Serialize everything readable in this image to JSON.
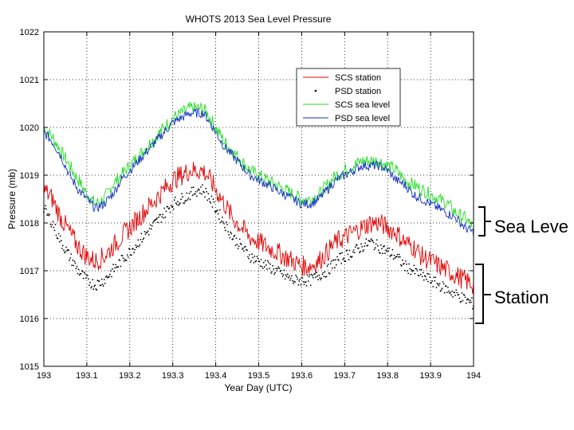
{
  "chart_data": {
    "type": "line",
    "title": "WHOTS 2013 Sea Level Pressure",
    "xlabel": "Year Day (UTC)",
    "ylabel": "Pressure (mb)",
    "xlim": [
      193,
      194
    ],
    "ylim": [
      1015,
      1022
    ],
    "xticks": [
      193,
      193.1,
      193.2,
      193.3,
      193.4,
      193.5,
      193.6,
      193.7,
      193.8,
      193.9,
      194
    ],
    "xtick_labels": [
      "193",
      "193.1",
      "193.2",
      "193.3",
      "193.4",
      "193.5",
      "193.6",
      "193.7",
      "193.8",
      "193.9",
      "194"
    ],
    "yticks": [
      1015,
      1016,
      1017,
      1018,
      1019,
      1020,
      1021,
      1022
    ],
    "ytick_labels": [
      "1015",
      "1016",
      "1017",
      "1018",
      "1019",
      "1020",
      "1021",
      "1022"
    ],
    "grid": true,
    "legend": {
      "position": "top-right",
      "entries": [
        "SCS station",
        "PSD station",
        "SCS sea level",
        "PSD sea level"
      ]
    },
    "series": [
      {
        "name": "SCS station",
        "color": "#e00000",
        "style": "line",
        "x": [
          193.0,
          193.02,
          193.04,
          193.06,
          193.08,
          193.1,
          193.12,
          193.14,
          193.16,
          193.18,
          193.2,
          193.22,
          193.24,
          193.26,
          193.28,
          193.3,
          193.32,
          193.34,
          193.36,
          193.37,
          193.38,
          193.4,
          193.42,
          193.44,
          193.46,
          193.48,
          193.5,
          193.52,
          193.54,
          193.56,
          193.58,
          193.6,
          193.62,
          193.64,
          193.66,
          193.68,
          193.7,
          193.72,
          193.74,
          193.76,
          193.78,
          193.8,
          193.82,
          193.84,
          193.86,
          193.88,
          193.9,
          193.92,
          193.94,
          193.96,
          193.98,
          194.0
        ],
        "values": [
          1018.7,
          1018.5,
          1018.1,
          1017.8,
          1017.5,
          1017.3,
          1017.2,
          1017.3,
          1017.5,
          1017.7,
          1017.9,
          1018.1,
          1018.3,
          1018.5,
          1018.7,
          1018.9,
          1019.0,
          1019.1,
          1019.1,
          1019.1,
          1019.0,
          1018.7,
          1018.4,
          1018.1,
          1017.9,
          1017.7,
          1017.6,
          1017.5,
          1017.4,
          1017.3,
          1017.2,
          1017.1,
          1017.1,
          1017.2,
          1017.4,
          1017.6,
          1017.7,
          1017.8,
          1017.9,
          1018.0,
          1018.0,
          1017.9,
          1017.8,
          1017.6,
          1017.5,
          1017.3,
          1017.2,
          1017.1,
          1017.0,
          1016.9,
          1016.8,
          1016.7
        ]
      },
      {
        "name": "PSD station",
        "color": "#000000",
        "style": "dots",
        "x": [
          193.0,
          193.02,
          193.04,
          193.06,
          193.08,
          193.1,
          193.12,
          193.14,
          193.16,
          193.18,
          193.2,
          193.22,
          193.24,
          193.26,
          193.28,
          193.3,
          193.32,
          193.34,
          193.36,
          193.37,
          193.38,
          193.4,
          193.42,
          193.44,
          193.46,
          193.48,
          193.5,
          193.52,
          193.54,
          193.56,
          193.58,
          193.6,
          193.62,
          193.64,
          193.66,
          193.68,
          193.7,
          193.72,
          193.74,
          193.76,
          193.78,
          193.8,
          193.82,
          193.84,
          193.86,
          193.88,
          193.9,
          193.92,
          193.94,
          193.96,
          193.98,
          194.0
        ],
        "values": [
          1018.3,
          1018.0,
          1017.6,
          1017.3,
          1017.0,
          1016.8,
          1016.7,
          1016.8,
          1017.0,
          1017.2,
          1017.4,
          1017.6,
          1017.8,
          1018.0,
          1018.2,
          1018.4,
          1018.5,
          1018.6,
          1018.7,
          1018.7,
          1018.6,
          1018.3,
          1018.0,
          1017.7,
          1017.5,
          1017.3,
          1017.2,
          1017.1,
          1017.0,
          1016.9,
          1016.8,
          1016.8,
          1016.8,
          1016.9,
          1017.0,
          1017.2,
          1017.3,
          1017.4,
          1017.5,
          1017.6,
          1017.5,
          1017.4,
          1017.3,
          1017.1,
          1017.0,
          1016.9,
          1016.8,
          1016.7,
          1016.6,
          1016.5,
          1016.4,
          1016.3
        ]
      },
      {
        "name": "SCS sea level",
        "color": "#22dd22",
        "style": "line",
        "x": [
          193.0,
          193.02,
          193.04,
          193.06,
          193.08,
          193.1,
          193.12,
          193.14,
          193.16,
          193.18,
          193.2,
          193.22,
          193.24,
          193.26,
          193.28,
          193.3,
          193.32,
          193.34,
          193.36,
          193.37,
          193.38,
          193.4,
          193.42,
          193.44,
          193.46,
          193.48,
          193.5,
          193.52,
          193.54,
          193.56,
          193.58,
          193.6,
          193.62,
          193.64,
          193.66,
          193.68,
          193.7,
          193.72,
          193.74,
          193.76,
          193.78,
          193.8,
          193.82,
          193.84,
          193.86,
          193.88,
          193.9,
          193.92,
          193.94,
          193.96,
          193.98,
          194.0
        ],
        "values": [
          1020.0,
          1019.8,
          1019.5,
          1019.2,
          1018.9,
          1018.6,
          1018.4,
          1018.5,
          1018.8,
          1019.0,
          1019.2,
          1019.4,
          1019.6,
          1019.8,
          1020.0,
          1020.2,
          1020.3,
          1020.4,
          1020.4,
          1020.4,
          1020.3,
          1020.0,
          1019.7,
          1019.5,
          1019.3,
          1019.1,
          1019.0,
          1018.9,
          1018.8,
          1018.7,
          1018.6,
          1018.5,
          1018.5,
          1018.6,
          1018.8,
          1019.0,
          1019.1,
          1019.2,
          1019.3,
          1019.3,
          1019.3,
          1019.2,
          1019.1,
          1018.9,
          1018.8,
          1018.7,
          1018.6,
          1018.5,
          1018.4,
          1018.2,
          1018.1,
          1017.9
        ]
      },
      {
        "name": "PSD sea level",
        "color": "#1030c0",
        "style": "line",
        "x": [
          193.0,
          193.02,
          193.04,
          193.06,
          193.08,
          193.1,
          193.12,
          193.14,
          193.16,
          193.18,
          193.2,
          193.22,
          193.24,
          193.26,
          193.28,
          193.3,
          193.32,
          193.34,
          193.36,
          193.37,
          193.38,
          193.4,
          193.42,
          193.44,
          193.46,
          193.48,
          193.5,
          193.52,
          193.54,
          193.56,
          193.58,
          193.6,
          193.62,
          193.64,
          193.66,
          193.68,
          193.7,
          193.72,
          193.74,
          193.76,
          193.78,
          193.8,
          193.82,
          193.84,
          193.86,
          193.88,
          193.9,
          193.92,
          193.94,
          193.96,
          193.98,
          194.0
        ],
        "values": [
          1019.9,
          1019.7,
          1019.4,
          1019.0,
          1018.7,
          1018.5,
          1018.3,
          1018.4,
          1018.6,
          1018.9,
          1019.1,
          1019.3,
          1019.5,
          1019.7,
          1019.9,
          1020.1,
          1020.2,
          1020.3,
          1020.3,
          1020.3,
          1020.2,
          1019.9,
          1019.6,
          1019.4,
          1019.2,
          1019.0,
          1018.9,
          1018.8,
          1018.7,
          1018.6,
          1018.5,
          1018.4,
          1018.4,
          1018.5,
          1018.7,
          1018.9,
          1019.0,
          1019.1,
          1019.2,
          1019.2,
          1019.2,
          1019.1,
          1018.9,
          1018.8,
          1018.6,
          1018.5,
          1018.4,
          1018.3,
          1018.2,
          1018.1,
          1017.9,
          1017.8
        ]
      }
    ]
  },
  "annotations": {
    "sea_level": "Sea Leve",
    "station": "Station"
  }
}
